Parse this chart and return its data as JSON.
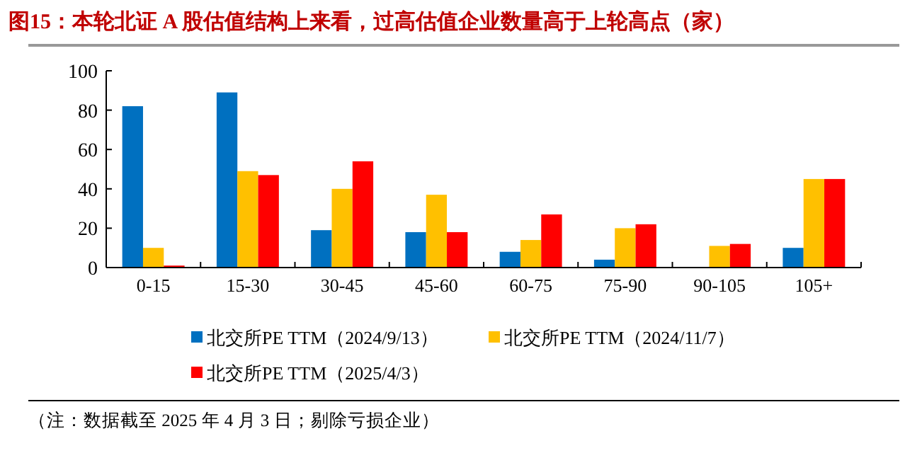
{
  "chart_data": {
    "type": "bar",
    "title": "图15：本轮北证 A 股估值结构上来看，过高估值企业数量高于上轮高点（家）",
    "categories": [
      "0-15",
      "15-30",
      "30-45",
      "45-60",
      "60-75",
      "75-90",
      "90-105",
      "105+"
    ],
    "series": [
      {
        "name": "北交所PE TTM（2024/9/13）",
        "color": "#0070c0",
        "values": [
          82,
          89,
          19,
          18,
          8,
          4,
          0,
          10
        ]
      },
      {
        "name": "北交所PE TTM（2024/11/7）",
        "color": "#ffc000",
        "values": [
          10,
          49,
          40,
          37,
          14,
          20,
          11,
          45
        ]
      },
      {
        "name": "北交所PE TTM（2025/4/3）",
        "color": "#ff0000",
        "values": [
          1,
          47,
          54,
          18,
          27,
          22,
          12,
          45
        ]
      }
    ],
    "ylim": [
      0,
      100
    ],
    "yticks": [
      0,
      20,
      40,
      60,
      80,
      100
    ],
    "grid": false,
    "legend": "bottom",
    "annotations": [
      "（注：数据截至 2025 年 4 月 3 日；剔除亏损企业）"
    ]
  }
}
